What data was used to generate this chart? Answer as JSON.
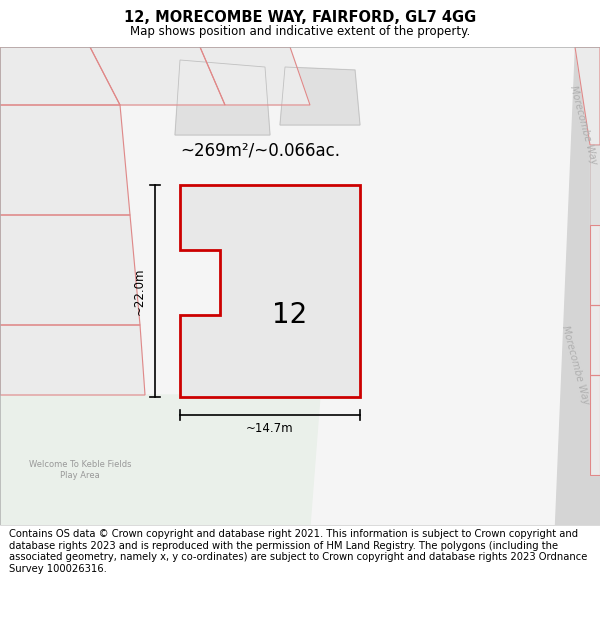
{
  "title": "12, MORECOMBE WAY, FAIRFORD, GL7 4GG",
  "subtitle": "Map shows position and indicative extent of the property.",
  "area_text": "~269m²/~0.066ac.",
  "label_number": "12",
  "dim_vertical": "~22.0m",
  "dim_horizontal": "~14.7m",
  "road_label": "Morecombe Way",
  "park_label": "Welcome To Keble Fields\nPlay Area",
  "footer": "Contains OS data © Crown copyright and database right 2021. This information is subject to Crown copyright and database rights 2023 and is reproduced with the permission of HM Land Registry. The polygons (including the associated geometry, namely x, y co-ordinates) are subject to Crown copyright and database rights 2023 Ordnance Survey 100026316.",
  "plot_line_color": "#cc0000",
  "pink_line_color": "#e08888",
  "green_area_color": "#eaf0ea",
  "road_fill": "#d8d8d8",
  "parcel_fill": "#ebebeb",
  "map_bg": "#f2f2f2",
  "title_fontsize": 10.5,
  "subtitle_fontsize": 8.5,
  "footer_fontsize": 7.2
}
